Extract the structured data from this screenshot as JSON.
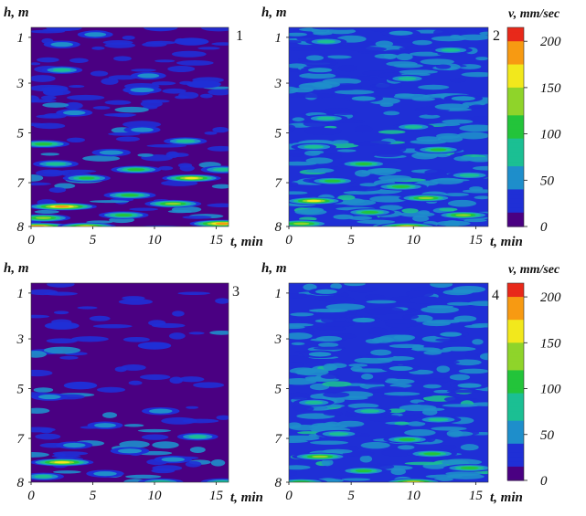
{
  "chart_data": [
    {
      "type": "heatmap",
      "panel_label": "1",
      "xlabel": "t, min",
      "ylabel": "h, m",
      "xticks": [
        "0",
        "5",
        "10",
        "15"
      ],
      "yticks": [
        "1",
        "3",
        "5",
        "7",
        "8"
      ],
      "xlim": [
        0,
        16
      ],
      "ylim": [
        1,
        8
      ],
      "intensity": "high",
      "background_level": 0,
      "streaks": [
        {
          "t": 2.5,
          "h": 1.6,
          "v": 50
        },
        {
          "t": 5.2,
          "h": 1.25,
          "v": 45
        },
        {
          "t": 10.5,
          "h": 1.0,
          "v": 40
        },
        {
          "t": 13.0,
          "h": 1.5,
          "v": 40
        },
        {
          "t": 2.5,
          "h": 2.5,
          "v": 70
        },
        {
          "t": 9.5,
          "h": 2.7,
          "v": 45
        },
        {
          "t": 9.0,
          "h": 3.2,
          "v": 60
        },
        {
          "t": 14.0,
          "h": 3.0,
          "v": 40
        },
        {
          "t": 3.5,
          "h": 4.0,
          "v": 50
        },
        {
          "t": 9.0,
          "h": 4.6,
          "v": 50
        },
        {
          "t": 1.0,
          "h": 5.1,
          "v": 120
        },
        {
          "t": 12.5,
          "h": 5.0,
          "v": 80
        },
        {
          "t": 6.5,
          "h": 5.4,
          "v": 60
        },
        {
          "t": 2.0,
          "h": 5.8,
          "v": 90
        },
        {
          "t": 8.5,
          "h": 6.0,
          "v": 110
        },
        {
          "t": 13.0,
          "h": 6.3,
          "v": 150
        },
        {
          "t": 15.5,
          "h": 6.0,
          "v": 80
        },
        {
          "t": 4.5,
          "h": 6.3,
          "v": 100
        },
        {
          "t": 8.0,
          "h": 6.9,
          "v": 120
        },
        {
          "t": 2.5,
          "h": 7.3,
          "v": 200
        },
        {
          "t": 11.5,
          "h": 7.2,
          "v": 140
        },
        {
          "t": 1.0,
          "h": 7.7,
          "v": 130
        },
        {
          "t": 7.5,
          "h": 7.6,
          "v": 110
        },
        {
          "t": 0.5,
          "h": 8.0,
          "v": 200
        },
        {
          "t": 4.5,
          "h": 8.0,
          "v": 150
        },
        {
          "t": 10.5,
          "h": 8.1,
          "v": 200
        },
        {
          "t": 15.5,
          "h": 7.9,
          "v": 180
        }
      ]
    },
    {
      "type": "heatmap",
      "panel_label": "2",
      "xlabel": "t, min",
      "ylabel": "h, m",
      "xticks": [
        "0",
        "5",
        "10",
        "15"
      ],
      "yticks": [
        "1",
        "3",
        "5",
        "7",
        "8"
      ],
      "xlim": [
        0,
        16
      ],
      "ylim": [
        1,
        8
      ],
      "intensity": "moderate",
      "background_level": 20,
      "streaks": [
        {
          "t": 3.0,
          "h": 1.5,
          "v": 70
        },
        {
          "t": 9.0,
          "h": 1.2,
          "v": 60
        },
        {
          "t": 13.0,
          "h": 1.8,
          "v": 80
        },
        {
          "t": 2.5,
          "h": 2.5,
          "v": 60
        },
        {
          "t": 9.5,
          "h": 2.8,
          "v": 70
        },
        {
          "t": 6.0,
          "h": 3.5,
          "v": 60
        },
        {
          "t": 14.0,
          "h": 3.5,
          "v": 60
        },
        {
          "t": 3.0,
          "h": 4.2,
          "v": 80
        },
        {
          "t": 10.0,
          "h": 4.5,
          "v": 70
        },
        {
          "t": 2.0,
          "h": 5.2,
          "v": 90
        },
        {
          "t": 12.0,
          "h": 5.3,
          "v": 100
        },
        {
          "t": 6.0,
          "h": 5.8,
          "v": 110
        },
        {
          "t": 14.5,
          "h": 6.2,
          "v": 90
        },
        {
          "t": 3.5,
          "h": 6.4,
          "v": 100
        },
        {
          "t": 9.0,
          "h": 6.6,
          "v": 120
        },
        {
          "t": 2.0,
          "h": 7.1,
          "v": 150
        },
        {
          "t": 11.0,
          "h": 7.0,
          "v": 130
        },
        {
          "t": 6.5,
          "h": 7.5,
          "v": 110
        },
        {
          "t": 1.0,
          "h": 7.9,
          "v": 140
        },
        {
          "t": 14.0,
          "h": 7.6,
          "v": 130
        },
        {
          "t": 9.5,
          "h": 8.0,
          "v": 160
        }
      ]
    },
    {
      "type": "heatmap",
      "panel_label": "3",
      "xlabel": "t, min",
      "ylabel": "h, m",
      "xticks": [
        "0",
        "5",
        "10",
        "15"
      ],
      "yticks": [
        "1",
        "3",
        "5",
        "7",
        "8"
      ],
      "xlim": [
        0,
        16
      ],
      "ylim": [
        1,
        8
      ],
      "intensity": "low",
      "background_level": 0,
      "streaks": [
        {
          "t": 2.5,
          "h": 2.5,
          "v": 40
        },
        {
          "t": 10.0,
          "h": 3.2,
          "v": 35
        },
        {
          "t": 4.0,
          "h": 4.6,
          "v": 35
        },
        {
          "t": 1.5,
          "h": 5.0,
          "v": 50
        },
        {
          "t": 10.5,
          "h": 5.5,
          "v": 55
        },
        {
          "t": 6.0,
          "h": 6.0,
          "v": 45
        },
        {
          "t": 13.5,
          "h": 6.4,
          "v": 70
        },
        {
          "t": 3.5,
          "h": 6.7,
          "v": 50
        },
        {
          "t": 8.0,
          "h": 6.9,
          "v": 60
        },
        {
          "t": 2.5,
          "h": 7.3,
          "v": 170
        },
        {
          "t": 11.5,
          "h": 7.2,
          "v": 55
        },
        {
          "t": 1.0,
          "h": 7.8,
          "v": 70
        },
        {
          "t": 6.0,
          "h": 7.7,
          "v": 55
        },
        {
          "t": 10.5,
          "h": 8.0,
          "v": 90
        },
        {
          "t": 15.5,
          "h": 8.0,
          "v": 80
        }
      ]
    },
    {
      "type": "heatmap",
      "panel_label": "4",
      "xlabel": "t, min",
      "ylabel": "h, m",
      "xticks": [
        "0",
        "5",
        "10",
        "15"
      ],
      "yticks": [
        "1",
        "3",
        "5",
        "7",
        "8"
      ],
      "xlim": [
        0,
        16
      ],
      "ylim": [
        1,
        8
      ],
      "intensity": "moderate",
      "background_level": 25,
      "streaks": [
        {
          "t": 3.0,
          "h": 1.3,
          "v": 45
        },
        {
          "t": 11.0,
          "h": 1.6,
          "v": 40
        },
        {
          "t": 6.0,
          "h": 2.3,
          "v": 50
        },
        {
          "t": 13.0,
          "h": 2.8,
          "v": 45
        },
        {
          "t": 2.5,
          "h": 3.5,
          "v": 50
        },
        {
          "t": 9.0,
          "h": 4.0,
          "v": 60
        },
        {
          "t": 14.5,
          "h": 4.6,
          "v": 60
        },
        {
          "t": 2.0,
          "h": 5.2,
          "v": 70
        },
        {
          "t": 6.5,
          "h": 5.5,
          "v": 80
        },
        {
          "t": 12.0,
          "h": 5.8,
          "v": 90
        },
        {
          "t": 4.0,
          "h": 6.3,
          "v": 90
        },
        {
          "t": 9.5,
          "h": 6.5,
          "v": 100
        },
        {
          "t": 2.5,
          "h": 7.1,
          "v": 140
        },
        {
          "t": 11.5,
          "h": 7.0,
          "v": 110
        },
        {
          "t": 6.0,
          "h": 7.6,
          "v": 100
        },
        {
          "t": 14.5,
          "h": 7.5,
          "v": 120
        },
        {
          "t": 1.0,
          "h": 8.0,
          "v": 120
        },
        {
          "t": 10.0,
          "h": 8.0,
          "v": 150
        }
      ]
    }
  ],
  "colorbars": [
    {
      "label": "v, mm/sec",
      "ticks": [
        "200",
        "150",
        "100",
        "50",
        "0"
      ],
      "range": [
        0,
        215
      ]
    },
    {
      "label": "v, mm/sec",
      "ticks": [
        "200",
        "150",
        "100",
        "50",
        "0"
      ],
      "range": [
        0,
        215
      ]
    }
  ],
  "colors": {
    "scale": [
      "#4a0082",
      "#1f2fd6",
      "#1e8ecb",
      "#1bbf93",
      "#23c43a",
      "#8fd42a",
      "#f2e81c",
      "#f79a12",
      "#e8291a"
    ]
  }
}
